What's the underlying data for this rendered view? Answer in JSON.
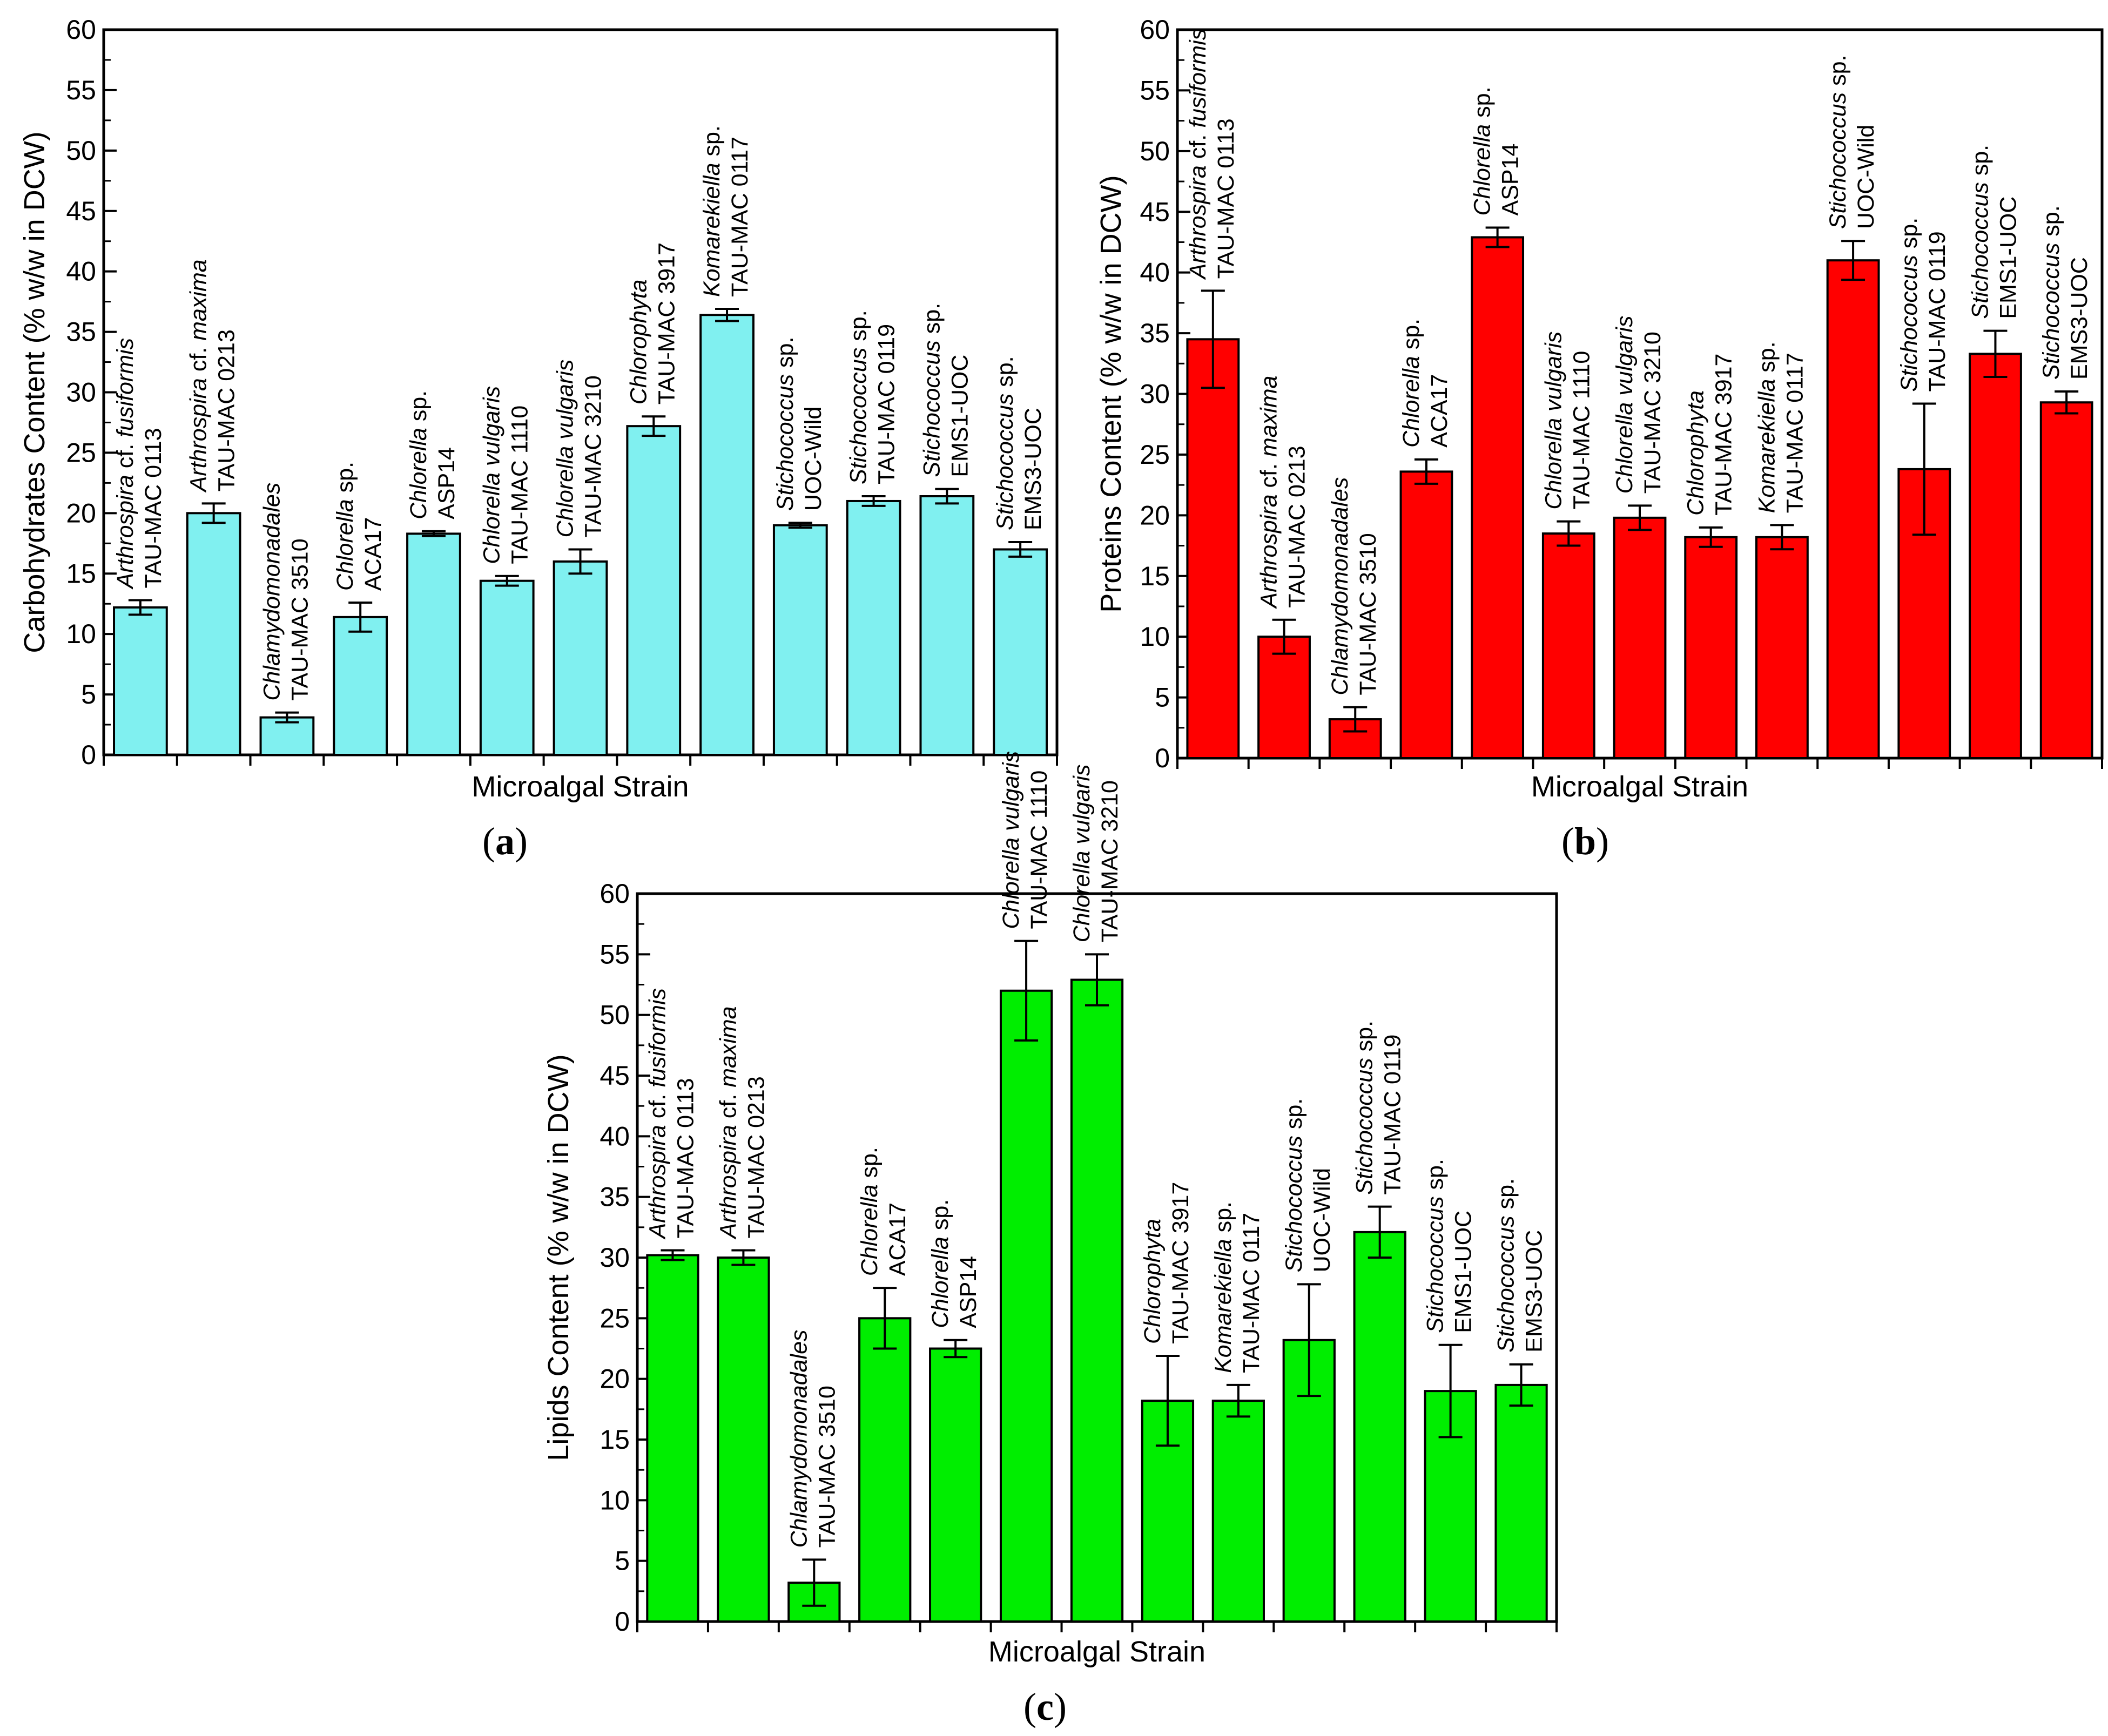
{
  "chart_data": [
    {
      "id": "a",
      "type": "bar",
      "panel_label": "a",
      "color": "#80f0f0",
      "ylabel": "Carbohydrates Content (% w/w in DCW)",
      "xlabel": "Microalgal Strain",
      "ylim": [
        0,
        60
      ],
      "yticks": [
        0,
        5,
        10,
        15,
        20,
        25,
        30,
        35,
        40,
        45,
        50,
        55,
        60
      ],
      "values": [
        12.2,
        20.0,
        3.1,
        11.4,
        18.3,
        14.4,
        16.0,
        27.2,
        36.4,
        19.0,
        21.0,
        21.4,
        17.0
      ],
      "errors": [
        0.6,
        0.8,
        0.4,
        1.2,
        0.2,
        0.4,
        1.0,
        0.8,
        0.5,
        0.2,
        0.4,
        0.6,
        0.6
      ],
      "categories": [
        {
          "species": "Arthrospira",
          "qualifier": " cf. ",
          "epithet": "fusiformis",
          "strain": "TAU-MAC 0113"
        },
        {
          "species": "Arthrospira",
          "qualifier": " cf. ",
          "epithet": "maxima",
          "strain": "TAU-MAC 0213"
        },
        {
          "species": "Chlamydomonadales",
          "qualifier": "",
          "epithet": "",
          "strain": "TAU-MAC 3510"
        },
        {
          "species": "Chlorella",
          "qualifier": " sp.",
          "epithet": "",
          "strain": "ACA17"
        },
        {
          "species": "Chlorella",
          "qualifier": " sp.",
          "epithet": "",
          "strain": "ASP14"
        },
        {
          "species": "Chlorella vulgaris",
          "qualifier": "",
          "epithet": "",
          "strain": "TAU-MAC 1110"
        },
        {
          "species": "Chlorella vulgaris",
          "qualifier": "",
          "epithet": "",
          "strain": "TAU-MAC 3210"
        },
        {
          "species": "Chlorophyta",
          "qualifier": "",
          "epithet": "",
          "strain": "TAU-MAC 3917"
        },
        {
          "species": "Komarekiella",
          "qualifier": " sp.",
          "epithet": "",
          "strain": "TAU-MAC 0117"
        },
        {
          "species": "Stichococcus",
          "qualifier": " sp.",
          "epithet": "",
          "strain": "UOC-Wild"
        },
        {
          "species": "Stichococcus",
          "qualifier": " sp.",
          "epithet": "",
          "strain": "TAU-MAC 0119"
        },
        {
          "species": "Stichococcus",
          "qualifier": " sp.",
          "epithet": "",
          "strain": "EMS1-UOC"
        },
        {
          "species": "Stichococcus",
          "qualifier": " sp.",
          "epithet": "",
          "strain": "EMS3-UOC"
        }
      ]
    },
    {
      "id": "b",
      "type": "bar",
      "panel_label": "b",
      "color": "#ff0000",
      "ylabel": "Proteins Content (% w/w in DCW)",
      "xlabel": "Microalgal Strain",
      "ylim": [
        0,
        60
      ],
      "yticks": [
        0,
        5,
        10,
        15,
        20,
        25,
        30,
        35,
        40,
        45,
        50,
        55,
        60
      ],
      "values": [
        34.5,
        10.0,
        3.2,
        23.6,
        42.9,
        18.5,
        19.8,
        18.2,
        18.2,
        41.0,
        23.8,
        33.3,
        29.3
      ],
      "errors": [
        4.0,
        1.4,
        1.0,
        1.0,
        0.8,
        1.0,
        1.0,
        0.8,
        1.0,
        1.6,
        5.4,
        1.9,
        0.9
      ],
      "categories": [
        {
          "species": "Arthrospira",
          "qualifier": " cf. ",
          "epithet": "fusiformis",
          "strain": "TAU-MAC 0113"
        },
        {
          "species": "Arthrospira",
          "qualifier": " cf. ",
          "epithet": "maxima",
          "strain": "TAU-MAC 0213"
        },
        {
          "species": "Chlamydomonadales",
          "qualifier": "",
          "epithet": "",
          "strain": "TAU-MAC 3510"
        },
        {
          "species": "Chlorella",
          "qualifier": " sp.",
          "epithet": "",
          "strain": "ACA17"
        },
        {
          "species": "Chlorella",
          "qualifier": " sp.",
          "epithet": "",
          "strain": "ASP14"
        },
        {
          "species": "Chlorella vulgaris",
          "qualifier": "",
          "epithet": "",
          "strain": "TAU-MAC 1110"
        },
        {
          "species": "Chlorella vulgaris",
          "qualifier": "",
          "epithet": "",
          "strain": "TAU-MAC 3210"
        },
        {
          "species": "Chlorophyta",
          "qualifier": "",
          "epithet": "",
          "strain": "TAU-MAC 3917"
        },
        {
          "species": "Komarekiella",
          "qualifier": " sp.",
          "epithet": "",
          "strain": "TAU-MAC 0117"
        },
        {
          "species": "Stichococcus",
          "qualifier": " sp.",
          "epithet": "",
          "strain": "UOC-Wild"
        },
        {
          "species": "Stichococcus",
          "qualifier": " sp.",
          "epithet": "",
          "strain": "TAU-MAC 0119"
        },
        {
          "species": "Stichococcus",
          "qualifier": " sp.",
          "epithet": "",
          "strain": "EMS1-UOC"
        },
        {
          "species": "Stichococcus",
          "qualifier": " sp.",
          "epithet": "",
          "strain": "EMS3-UOC"
        }
      ]
    },
    {
      "id": "c",
      "type": "bar",
      "panel_label": "c",
      "color": "#00ee00",
      "ylabel": "Lipids Content (% w/w in DCW)",
      "xlabel": "Microalgal Strain",
      "ylim": [
        0,
        60
      ],
      "yticks": [
        0,
        5,
        10,
        15,
        20,
        25,
        30,
        35,
        40,
        45,
        50,
        55,
        60
      ],
      "values": [
        30.2,
        30.0,
        3.2,
        25.0,
        22.5,
        52.0,
        52.9,
        18.2,
        18.2,
        23.2,
        32.1,
        19.0,
        19.5
      ],
      "errors": [
        0.4,
        0.6,
        1.9,
        2.5,
        0.7,
        4.1,
        2.1,
        3.7,
        1.3,
        4.6,
        2.1,
        3.8,
        1.7
      ],
      "categories": [
        {
          "species": "Arthrospira",
          "qualifier": " cf. ",
          "epithet": "fusiformis",
          "strain": "TAU-MAC 0113"
        },
        {
          "species": "Arthrospira",
          "qualifier": " cf. ",
          "epithet": "maxima",
          "strain": "TAU-MAC 0213"
        },
        {
          "species": "Chlamydomonadales",
          "qualifier": "",
          "epithet": "",
          "strain": "TAU-MAC 3510"
        },
        {
          "species": "Chlorella",
          "qualifier": " sp.",
          "epithet": "",
          "strain": "ACA17"
        },
        {
          "species": "Chlorella",
          "qualifier": " sp.",
          "epithet": "",
          "strain": "ASP14"
        },
        {
          "species": "Chlorella vulgaris",
          "qualifier": "",
          "epithet": "",
          "strain": "TAU-MAC 1110"
        },
        {
          "species": "Chlorella vulgaris",
          "qualifier": "",
          "epithet": "",
          "strain": "TAU-MAC 3210"
        },
        {
          "species": "Chlorophyta",
          "qualifier": "",
          "epithet": "",
          "strain": "TAU-MAC 3917"
        },
        {
          "species": "Komarekiella",
          "qualifier": " sp.",
          "epithet": "",
          "strain": "TAU-MAC 0117"
        },
        {
          "species": "Stichococcus",
          "qualifier": " sp.",
          "epithet": "",
          "strain": "UOC-Wild"
        },
        {
          "species": "Stichococcus",
          "qualifier": " sp.",
          "epithet": "",
          "strain": "TAU-MAC 0119"
        },
        {
          "species": "Stichococcus",
          "qualifier": " sp.",
          "epithet": "",
          "strain": "EMS1-UOC"
        },
        {
          "species": "Stichococcus",
          "qualifier": " sp.",
          "epithet": "",
          "strain": "EMS3-UOC"
        }
      ]
    }
  ]
}
